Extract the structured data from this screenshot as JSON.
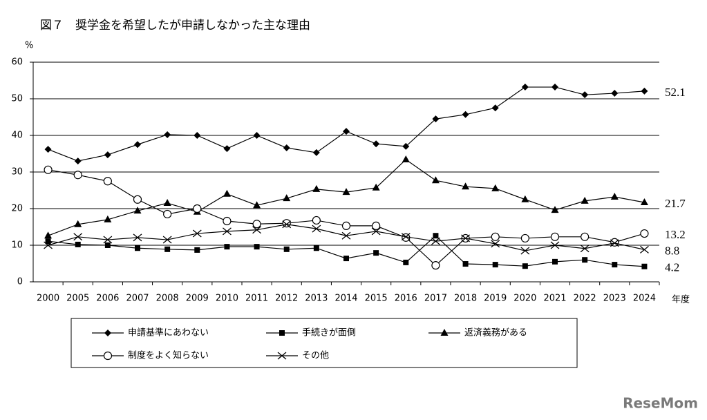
{
  "chart_data": {
    "type": "line",
    "title": "図７　奨学金を希望したが申請しなかった主な理由",
    "y_label": "%",
    "x_label": "年度",
    "watermark": "ReseMom",
    "categories": [
      "2000",
      "2005",
      "2006",
      "2007",
      "2008",
      "2009",
      "2010",
      "2011",
      "2012",
      "2013",
      "2014",
      "2015",
      "2016",
      "2017",
      "2018",
      "2019",
      "2020",
      "2021",
      "2022",
      "2023",
      "2024"
    ],
    "ylim": [
      0,
      60
    ],
    "yticks": [
      0,
      10,
      20,
      30,
      40,
      50,
      60
    ],
    "grid": true,
    "series": [
      {
        "name": "申請基準にあわない",
        "color": "#000000",
        "marker": "diamond",
        "values": [
          36.2,
          33.0,
          34.7,
          37.5,
          40.2,
          40.0,
          36.4,
          40.0,
          36.6,
          35.3,
          41.1,
          37.7,
          37.0,
          44.5,
          45.7,
          47.5,
          53.2,
          53.2,
          51.1,
          51.5,
          52.1
        ]
      },
      {
        "name": "手続きが面倒",
        "color": "#000000",
        "marker": "square",
        "values": [
          11.1,
          10.2,
          10.0,
          9.2,
          8.9,
          8.7,
          9.6,
          9.6,
          8.9,
          9.2,
          6.4,
          7.9,
          5.3,
          12.6,
          4.9,
          4.7,
          4.3,
          5.5,
          6.0,
          4.7,
          4.2
        ]
      },
      {
        "name": "返済義務がある",
        "color": "#000000",
        "marker": "triangle",
        "values": [
          12.6,
          15.7,
          17.0,
          19.4,
          21.5,
          19.1,
          24.0,
          20.9,
          22.8,
          25.3,
          24.5,
          25.7,
          33.4,
          27.7,
          26.0,
          25.5,
          22.5,
          19.6,
          22.1,
          23.2,
          21.7
        ]
      },
      {
        "name": "制度をよく知らない",
        "color": "#000000",
        "marker": "circle",
        "values": [
          30.6,
          29.2,
          27.5,
          22.5,
          18.5,
          20.0,
          16.6,
          15.8,
          16.0,
          16.8,
          15.3,
          15.3,
          12.1,
          4.5,
          11.9,
          12.3,
          11.9,
          12.3,
          12.3,
          10.8,
          13.2
        ]
      },
      {
        "name": "その他",
        "color": "#000000",
        "marker": "x",
        "values": [
          10.0,
          12.3,
          11.5,
          12.1,
          11.5,
          13.2,
          13.8,
          14.2,
          15.7,
          14.5,
          12.6,
          13.8,
          12.3,
          11.1,
          11.9,
          10.4,
          8.5,
          10.0,
          9.1,
          10.6,
          8.8
        ]
      }
    ]
  }
}
